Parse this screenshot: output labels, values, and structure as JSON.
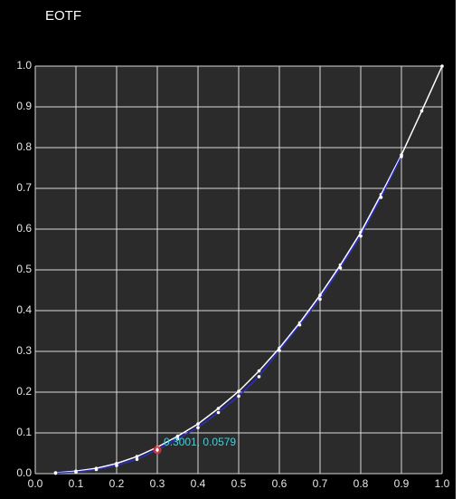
{
  "chart_data": {
    "type": "line",
    "title": "EOTF",
    "x": [
      0.05,
      0.1,
      0.15,
      0.2,
      0.25,
      0.3,
      0.35,
      0.4,
      0.45,
      0.5,
      0.55,
      0.6,
      0.65,
      0.7,
      0.75,
      0.8,
      0.85,
      0.9,
      0.95,
      1.0
    ],
    "series": [
      {
        "color": "#ffffff",
        "values": [
          0.002,
          0.006,
          0.013,
          0.025,
          0.042,
          0.065,
          0.092,
          0.122,
          0.16,
          0.202,
          0.252,
          0.308,
          0.37,
          0.438,
          0.512,
          0.592,
          0.685,
          0.782,
          0.89,
          1.0
        ]
      },
      {
        "color": "#2a2ad8",
        "values": [
          0.001,
          0.004,
          0.01,
          0.02,
          0.035,
          0.0579,
          0.085,
          0.113,
          0.15,
          0.19,
          0.238,
          0.302,
          0.365,
          0.428,
          0.505,
          0.583,
          0.678,
          0.778,
          null,
          null
        ]
      }
    ],
    "marker": {
      "x": 0.3001,
      "y": 0.0579,
      "label": "0.3001, 0.0579",
      "color": "#e03030",
      "label_color": "#33d6e6"
    },
    "xlim": [
      0,
      1
    ],
    "ylim": [
      0,
      1
    ],
    "xticks": [
      {
        "value": 0,
        "label": "0.0"
      },
      0.1,
      0.2,
      0.3,
      0.4,
      0.5,
      0.6,
      0.7,
      0.8,
      0.9,
      {
        "value": 1,
        "label": "1.0"
      }
    ],
    "yticks": [
      {
        "value": 0,
        "label": "0.0"
      },
      0.1,
      0.2,
      0.3,
      0.4,
      0.5,
      0.6,
      0.7,
      0.8,
      0.9,
      {
        "value": 1,
        "label": "1.0"
      }
    ],
    "grid": true
  }
}
